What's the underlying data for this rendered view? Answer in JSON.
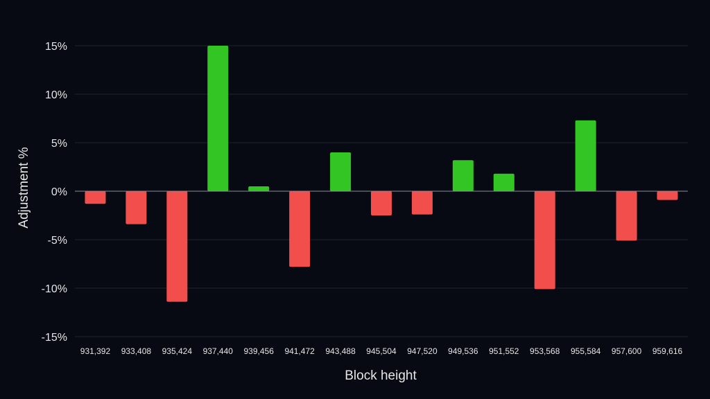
{
  "chart_data": {
    "type": "bar",
    "xlabel": "Block height",
    "ylabel": "Adjustment %",
    "ylim": [
      -15,
      15
    ],
    "yticks": [
      15,
      10,
      5,
      0,
      -5,
      -10,
      -15
    ],
    "ytick_labels": [
      "15%",
      "10%",
      "5%",
      "0%",
      "-5%",
      "-10%",
      "-15%"
    ],
    "grid": true,
    "categories": [
      "931,392",
      "933,408",
      "935,424",
      "937,440",
      "939,456",
      "941,472",
      "943,488",
      "945,504",
      "947,520",
      "949,536",
      "951,552",
      "953,568",
      "955,584",
      "957,600",
      "959,616"
    ],
    "values": [
      -1.3,
      -3.4,
      -11.4,
      15.0,
      0.5,
      -7.8,
      4.0,
      -2.5,
      -2.4,
      3.2,
      1.8,
      -10.1,
      7.3,
      -5.1,
      -0.9
    ],
    "colors": {
      "positive": "#33c524",
      "negative": "#f24e4c",
      "grid": "#1c2230",
      "zero_line": "#8a8f99",
      "text": "#e6e6e6",
      "background": "#070a12"
    }
  }
}
